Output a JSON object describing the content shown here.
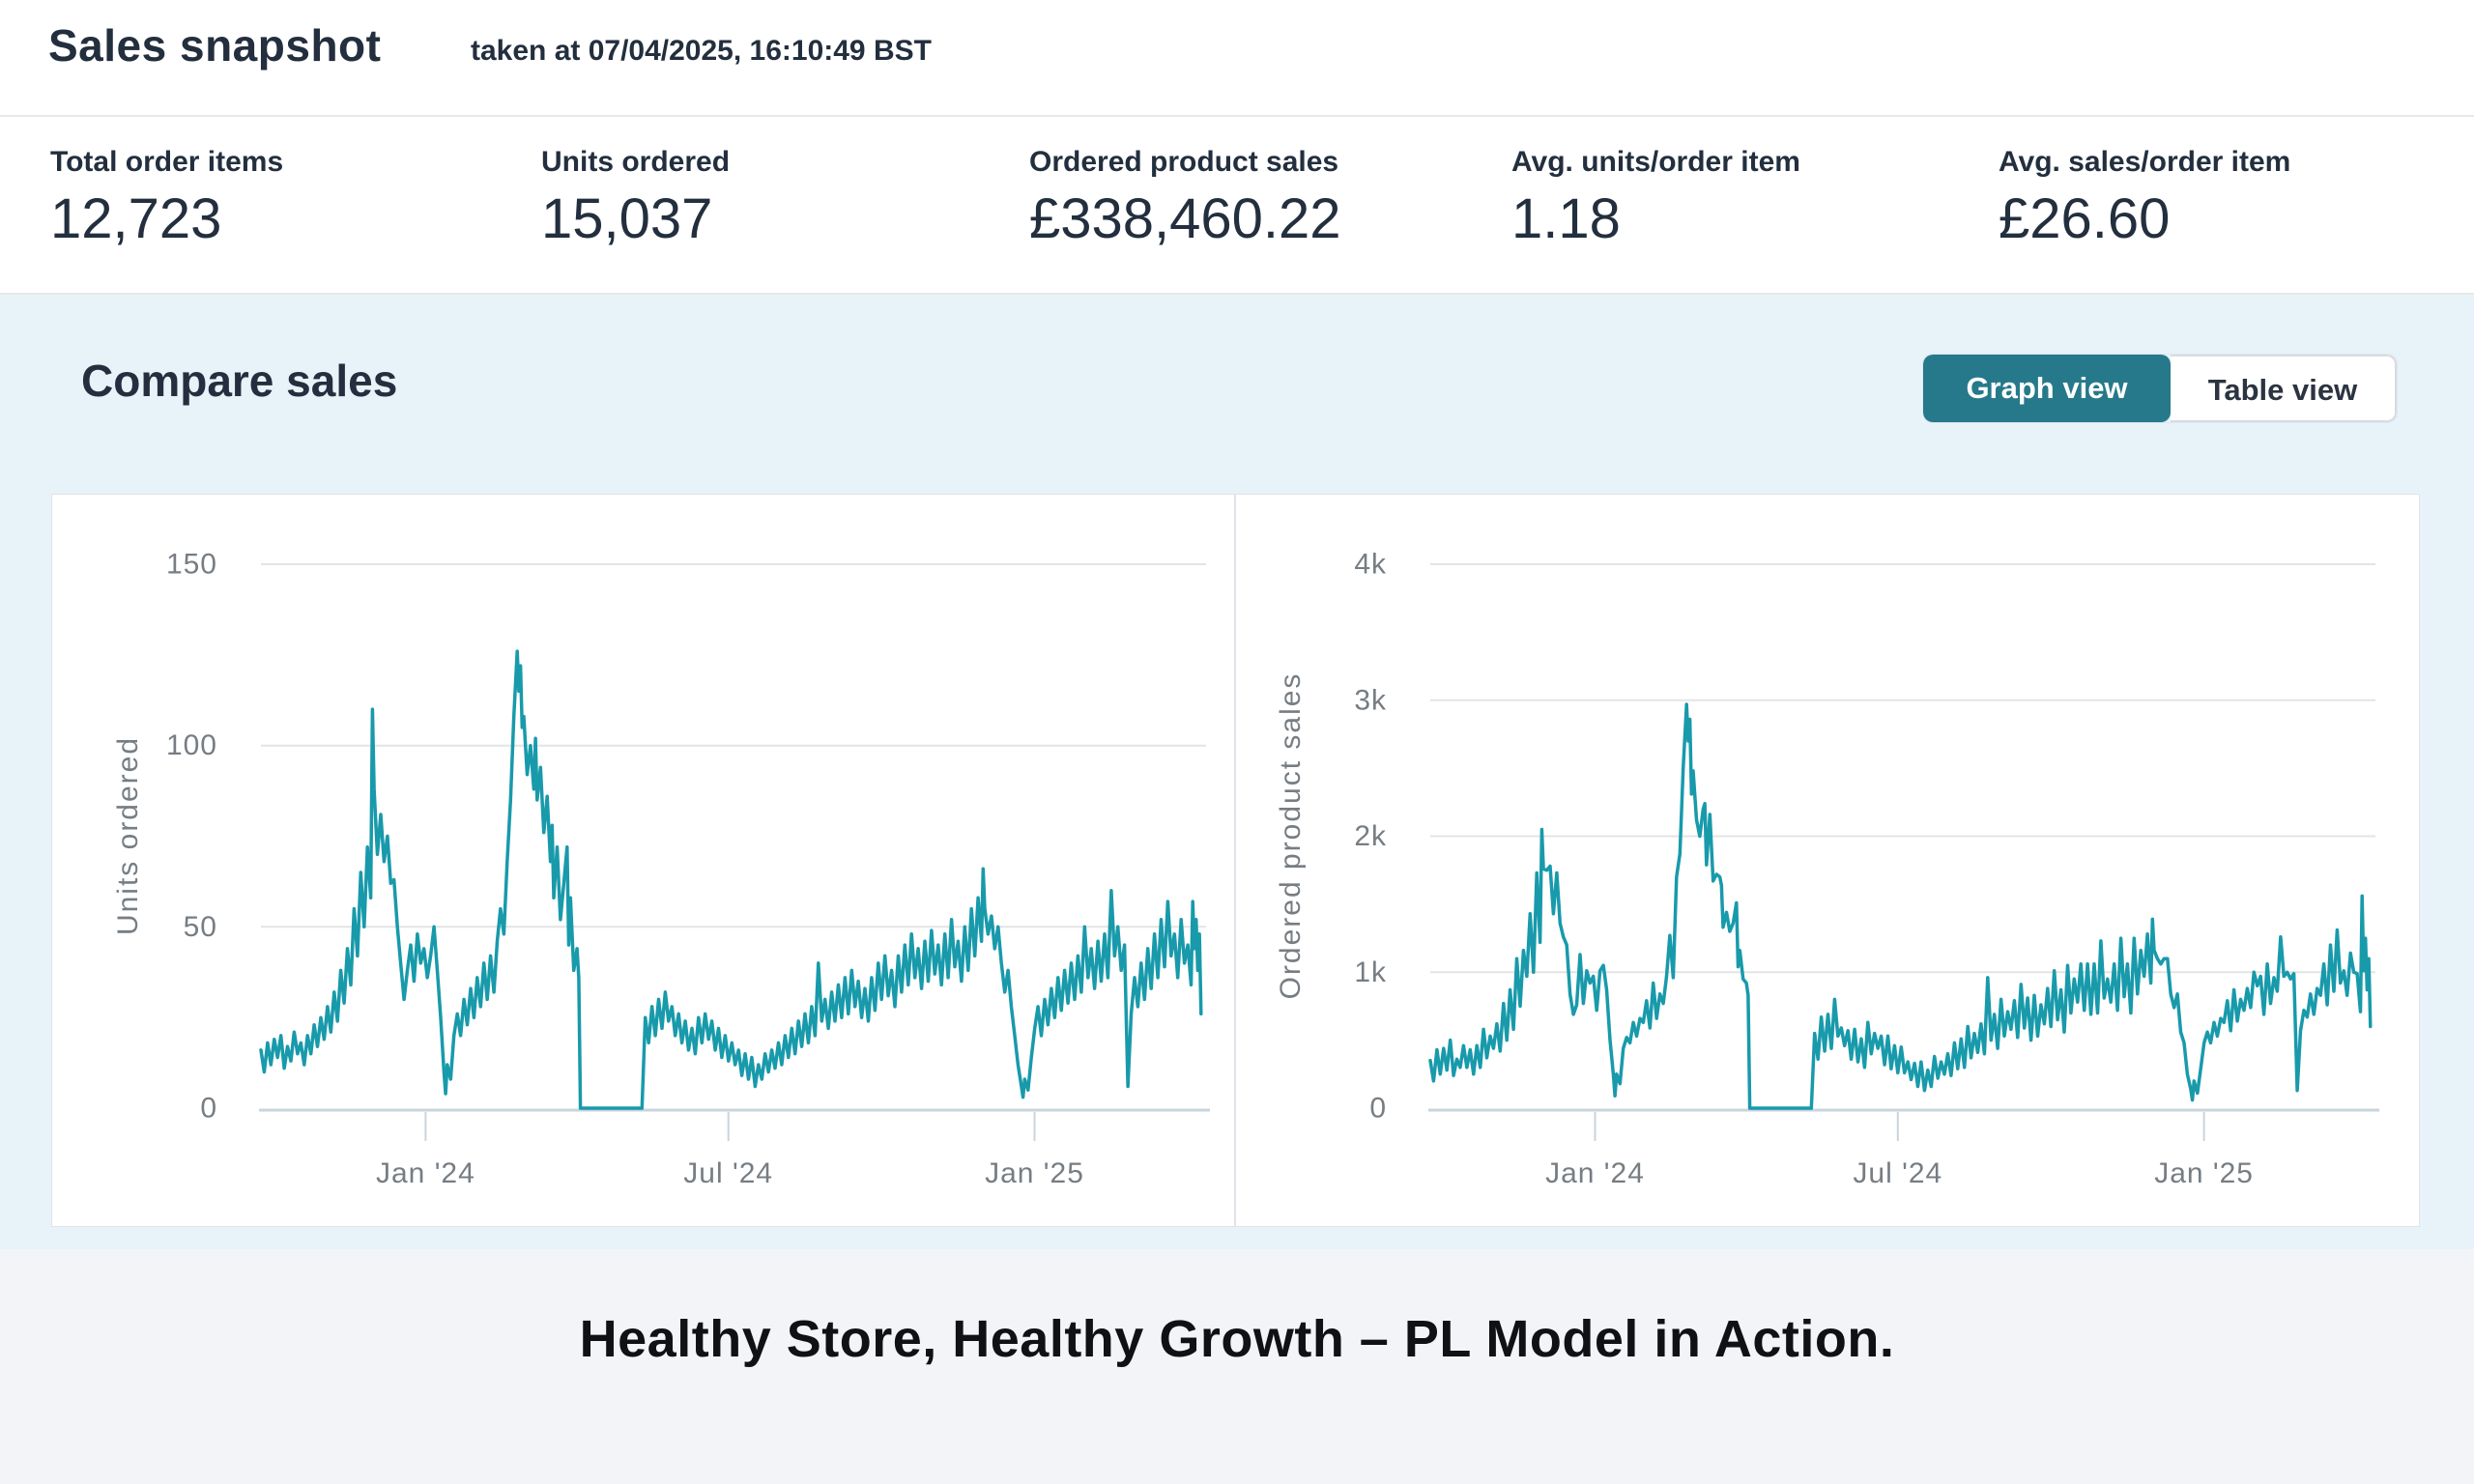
{
  "header": {
    "title": "Sales snapshot",
    "timestamp": "taken at 07/04/2025, 16:10:49 BST"
  },
  "metrics": {
    "items": [
      {
        "label": "Total order items",
        "value": "12,723"
      },
      {
        "label": "Units ordered",
        "value": "15,037"
      },
      {
        "label": "Ordered product sales",
        "value": "£338,460.22"
      },
      {
        "label": "Avg. units/order item",
        "value": "1.18"
      },
      {
        "label": "Avg. sales/order item",
        "value": "£26.60"
      }
    ]
  },
  "compare": {
    "title": "Compare sales",
    "graph_view_label": "Graph view",
    "table_view_label": "Table view",
    "active_view": "Graph view"
  },
  "caption": {
    "text": "Healthy Store, Healthy Growth – PL Model in Action."
  },
  "colors": {
    "line_teal": "#189aab",
    "active_button_teal": "#26798a",
    "section_blue": "#e8f2f9",
    "caption_bg": "#f3f4f8",
    "dark_text": "#232f3e",
    "axis_text_gray": "#767d83"
  },
  "chart_data": {
    "type": "line",
    "grid": true,
    "legend": "none",
    "x_range_days": [
      0,
      568
    ],
    "x_ticks": [
      {
        "day": 99,
        "label": "Jan '24"
      },
      {
        "day": 281,
        "label": "Jul '24"
      },
      {
        "day": 465,
        "label": "Jan '25"
      }
    ],
    "x_days": [
      0,
      2,
      4,
      6,
      8,
      10,
      12,
      14,
      16,
      18,
      20,
      22,
      24,
      26,
      28,
      30,
      32,
      34,
      36,
      38,
      40,
      42,
      44,
      46,
      48,
      50,
      52,
      54,
      56,
      58,
      60,
      62,
      64,
      66,
      67,
      68,
      70,
      72,
      74,
      76,
      78,
      80,
      82,
      84,
      86,
      88,
      90,
      92,
      94,
      96,
      98,
      100,
      102,
      104,
      106,
      108,
      110,
      111,
      112,
      114,
      116,
      118,
      120,
      122,
      124,
      126,
      128,
      130,
      132,
      134,
      136,
      138,
      140,
      142,
      144,
      146,
      148,
      150,
      152,
      154,
      155,
      156,
      157,
      158,
      160,
      162,
      164,
      165,
      166,
      168,
      170,
      172,
      174,
      175,
      176,
      178,
      180,
      182,
      184,
      185,
      186,
      188,
      190,
      191,
      192,
      229,
      231,
      233,
      235,
      237,
      239,
      241,
      243,
      245,
      247,
      249,
      251,
      253,
      255,
      257,
      259,
      261,
      263,
      265,
      267,
      269,
      271,
      273,
      275,
      277,
      279,
      281,
      283,
      285,
      287,
      289,
      291,
      293,
      295,
      297,
      299,
      301,
      303,
      305,
      307,
      309,
      311,
      313,
      315,
      317,
      319,
      321,
      323,
      325,
      327,
      329,
      331,
      333,
      335,
      337,
      339,
      341,
      343,
      345,
      347,
      349,
      351,
      353,
      355,
      357,
      359,
      361,
      363,
      365,
      367,
      369,
      371,
      373,
      375,
      377,
      379,
      381,
      383,
      385,
      387,
      389,
      391,
      393,
      395,
      397,
      399,
      401,
      403,
      405,
      407,
      409,
      411,
      413,
      415,
      417,
      419,
      421,
      423,
      425,
      427,
      429,
      431,
      433,
      434,
      435,
      437,
      439,
      441,
      443,
      445,
      447,
      449,
      451,
      453,
      455,
      457,
      458,
      459,
      461,
      463,
      465,
      467,
      469,
      471,
      473,
      475,
      477,
      479,
      481,
      483,
      485,
      487,
      489,
      491,
      493,
      495,
      497,
      499,
      501,
      503,
      505,
      507,
      509,
      511,
      513,
      515,
      517,
      519,
      521,
      523,
      525,
      527,
      529,
      531,
      533,
      535,
      537,
      539,
      541,
      543,
      545,
      547,
      549,
      551,
      553,
      555,
      557,
      559,
      560,
      561,
      562,
      563,
      564,
      565
    ],
    "series": [
      {
        "name": "Units ordered",
        "ylabel": "Units ordered",
        "ylim": [
          0,
          150
        ],
        "y_ticks": [
          {
            "v": 0,
            "label": "0"
          },
          {
            "v": 50,
            "label": "50"
          },
          {
            "v": 100,
            "label": "100"
          },
          {
            "v": 150,
            "label": "150"
          }
        ],
        "values": [
          16,
          10,
          18,
          12,
          19,
          14,
          20,
          11,
          17,
          13,
          21,
          15,
          18,
          12,
          20,
          15,
          23,
          17,
          25,
          19,
          28,
          21,
          32,
          24,
          38,
          29,
          44,
          34,
          55,
          42,
          65,
          50,
          72,
          58,
          110,
          88,
          70,
          81,
          68,
          75,
          62,
          63,
          50,
          40,
          30,
          38,
          45,
          35,
          48,
          40,
          44,
          36,
          42,
          50,
          38,
          25,
          10,
          4,
          12,
          8,
          20,
          26,
          20,
          30,
          23,
          33,
          25,
          36,
          28,
          40,
          30,
          42,
          32,
          46,
          55,
          48,
          68,
          85,
          108,
          126,
          115,
          122,
          105,
          108,
          92,
          100,
          88,
          102,
          85,
          94,
          76,
          86,
          68,
          78,
          58,
          72,
          52,
          62,
          72,
          45,
          58,
          38,
          44,
          36,
          0,
          0,
          25,
          18,
          28,
          20,
          30,
          22,
          32,
          24,
          28,
          20,
          26,
          18,
          24,
          16,
          22,
          15,
          25,
          18,
          26,
          19,
          24,
          16,
          22,
          14,
          20,
          13,
          18,
          12,
          16,
          9,
          15,
          8,
          14,
          6,
          12,
          8,
          15,
          10,
          16,
          11,
          18,
          12,
          20,
          14,
          22,
          15,
          24,
          17,
          26,
          18,
          28,
          20,
          40,
          24,
          30,
          22,
          32,
          24,
          34,
          25,
          36,
          26,
          38,
          28,
          35,
          25,
          33,
          24,
          36,
          27,
          40,
          30,
          42,
          31,
          38,
          28,
          42,
          32,
          45,
          34,
          48,
          36,
          44,
          33,
          46,
          35,
          49,
          37,
          45,
          34,
          48,
          36,
          52,
          39,
          46,
          35,
          50,
          38,
          55,
          42,
          58,
          46,
          66,
          55,
          48,
          53,
          44,
          50,
          40,
          32,
          38,
          28,
          20,
          12,
          6,
          3,
          8,
          5,
          14,
          22,
          28,
          20,
          30,
          23,
          33,
          25,
          36,
          27,
          38,
          29,
          40,
          30,
          42,
          32,
          50,
          36,
          44,
          33,
          46,
          35,
          48,
          36,
          60,
          42,
          50,
          38,
          45,
          6,
          26,
          36,
          28,
          40,
          30,
          44,
          33,
          48,
          36,
          52,
          39,
          57,
          42,
          48,
          36,
          52,
          40,
          45,
          34,
          57,
          44,
          52,
          38,
          48,
          26
        ]
      },
      {
        "name": "Ordered product sales",
        "ylabel": "Ordered product sales",
        "ylim": [
          0,
          4000
        ],
        "y_ticks": [
          {
            "v": 0,
            "label": "0"
          },
          {
            "v": 1000,
            "label": "1k"
          },
          {
            "v": 2000,
            "label": "2k"
          },
          {
            "v": 3000,
            "label": "3k"
          },
          {
            "v": 4000,
            "label": "4k"
          }
        ],
        "values": [
          350,
          200,
          430,
          250,
          440,
          280,
          500,
          240,
          360,
          300,
          460,
          300,
          430,
          250,
          460,
          300,
          580,
          370,
          530,
          440,
          620,
          420,
          770,
          500,
          870,
          580,
          1100,
          750,
          1160,
          970,
          1430,
          1000,
          1730,
          1220,
          2050,
          1760,
          1750,
          1780,
          1430,
          1730,
          1360,
          1260,
          1200,
          840,
          690,
          760,
          1130,
          770,
          1010,
          920,
          970,
          720,
          1010,
          1050,
          870,
          500,
          250,
          90,
          250,
          180,
          440,
          520,
          480,
          630,
          530,
          660,
          630,
          790,
          590,
          920,
          660,
          840,
          770,
          970,
          1270,
          960,
          1700,
          1870,
          2500,
          2970,
          2700,
          2860,
          2310,
          2480,
          2120,
          2000,
          2200,
          2240,
          1790,
          2160,
          1670,
          1720,
          1700,
          1640,
          1330,
          1440,
          1300,
          1360,
          1510,
          1040,
          1160,
          950,
          920,
          830,
          0,
          0,
          550,
          360,
          670,
          420,
          690,
          440,
          800,
          530,
          590,
          460,
          570,
          360,
          580,
          340,
          510,
          300,
          630,
          400,
          550,
          440,
          530,
          320,
          530,
          290,
          460,
          260,
          450,
          260,
          340,
          210,
          330,
          160,
          340,
          130,
          280,
          160,
          380,
          220,
          340,
          250,
          400,
          240,
          480,
          290,
          510,
          300,
          600,
          370,
          550,
          410,
          620,
          400,
          960,
          500,
          690,
          440,
          800,
          530,
          710,
          580,
          790,
          520,
          910,
          590,
          810,
          500,
          830,
          530,
          760,
          620,
          880,
          600,
          1010,
          650,
          870,
          560,
          1050,
          700,
          950,
          780,
          1060,
          720,
          1060,
          690,
          1060,
          700,
          1230,
          810,
          950,
          780,
          1060,
          720,
          1250,
          820,
          1060,
          700,
          1250,
          840,
          1160,
          970,
          1280,
          920,
          1390,
          1160,
          1100,
          1060,
          1100,
          1100,
          840,
          740,
          840,
          560,
          480,
          250,
          140,
          60,
          200,
          110,
          290,
          480,
          560,
          480,
          630,
          530,
          660,
          630,
          790,
          570,
          870,
          640,
          800,
          720,
          880,
          740,
          1000,
          900,
          970,
          690,
          1060,
          770,
          960,
          860,
          1260,
          970,
          1000,
          950,
          990,
          130,
          570,
          720,
          670,
          840,
          690,
          880,
          830,
          1060,
          760,
          1200,
          860,
          1310,
          920,
          1010,
          830,
          1140,
          1000,
          990,
          710,
          1560,
          1010,
          1250,
          870,
          1100,
          600
        ]
      }
    ]
  }
}
